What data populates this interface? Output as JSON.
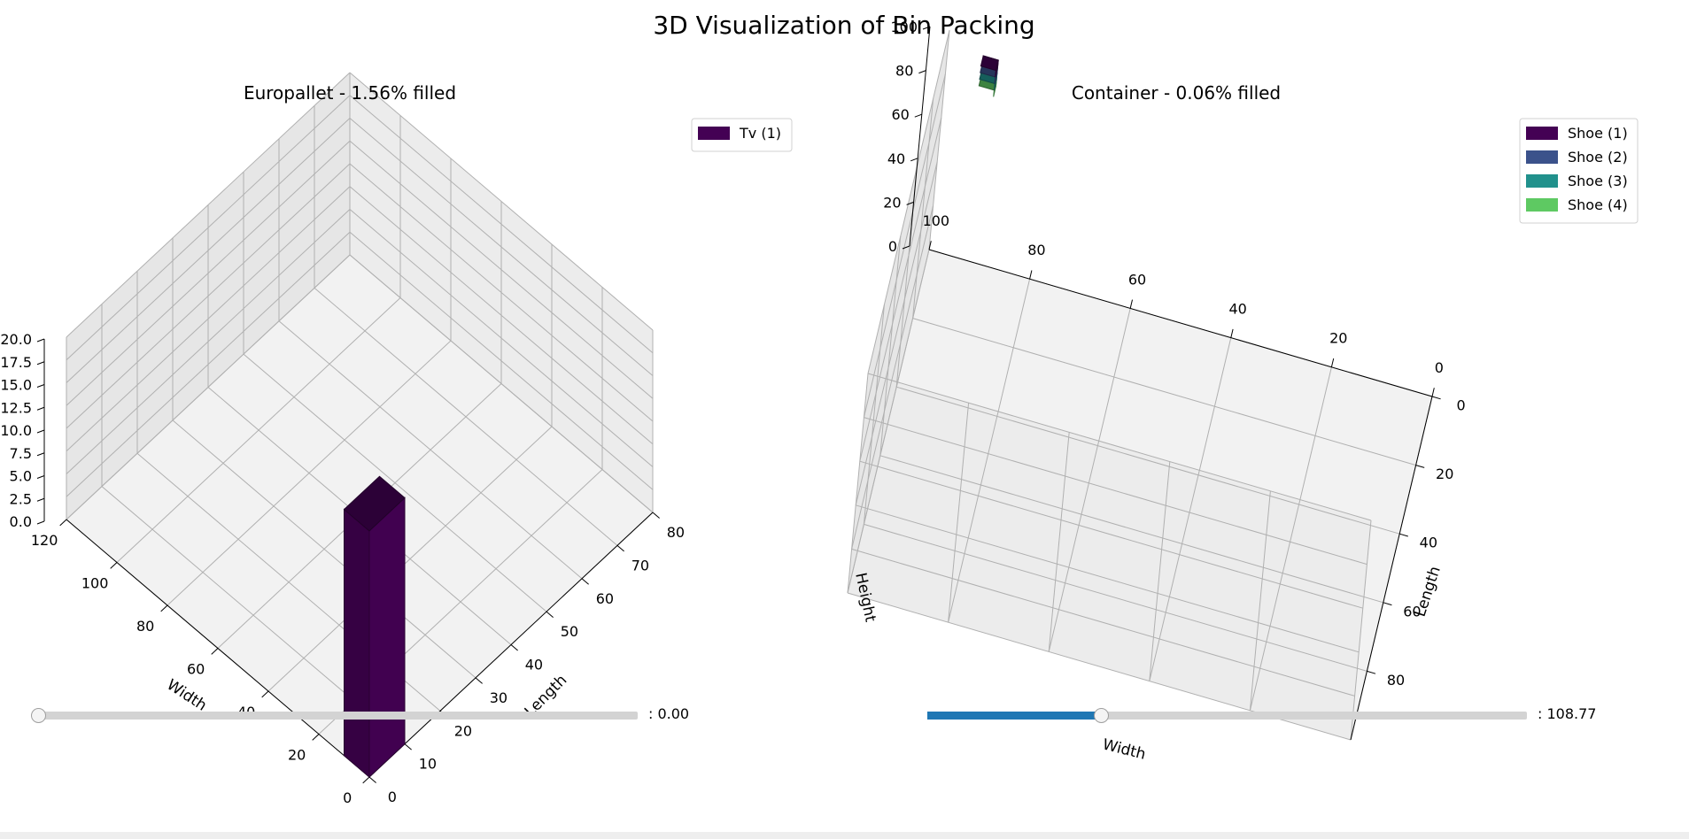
{
  "figure": {
    "title": "3D Visualization of Bin Packing"
  },
  "colors": {
    "pane": "#f2f2f2",
    "grid": "#b0b0b0",
    "tv": "#440154",
    "shoe1": "#440154",
    "shoe2": "#3b528b",
    "shoe3": "#21918c",
    "shoe4": "#5ec962",
    "slider_fill": "#1f77b4",
    "slider_track": "#d3d3d3"
  },
  "chart_data": [
    {
      "type": "bar3d",
      "title": "Europallet - 1.56% filled",
      "xlabel": "Length",
      "ylabel": "Width",
      "zlabel": "",
      "x_ticks": [
        "0",
        "10",
        "20",
        "30",
        "40",
        "50",
        "60",
        "70",
        "80"
      ],
      "y_ticks": [
        "0",
        "20",
        "40",
        "60",
        "80",
        "100",
        "120"
      ],
      "z_ticks": [
        "0.0",
        "2.5",
        "5.0",
        "7.5",
        "10.0",
        "12.5",
        "15.0",
        "17.5",
        "20.0"
      ],
      "xlim": [
        0,
        80
      ],
      "ylim": [
        0,
        120
      ],
      "zlim": [
        0,
        20
      ],
      "legend": [
        {
          "label": "Tv (1)",
          "color": "#440154"
        }
      ],
      "legend_position": "top-right",
      "boxes": [
        {
          "name": "Tv (1)",
          "x": [
            0,
            10
          ],
          "y": [
            0,
            10
          ],
          "z": [
            0,
            27
          ],
          "color": "#440154"
        }
      ],
      "slider": {
        "value_text": ": 0.00",
        "fraction": 0.0
      }
    },
    {
      "type": "bar3d",
      "title": "Container - 0.06% filled",
      "xlabel": "Length",
      "ylabel": "Width",
      "zlabel": "Height",
      "x_ticks": [
        "0",
        "20",
        "40",
        "60",
        "80"
      ],
      "y_ticks": [
        "0",
        "20",
        "40",
        "60",
        "80",
        "100"
      ],
      "z_ticks": [
        "0",
        "20",
        "40",
        "60",
        "80",
        "100"
      ],
      "xlim": [
        0,
        100
      ],
      "ylim": [
        0,
        100
      ],
      "zlim": [
        0,
        100
      ],
      "legend": [
        {
          "label": "Shoe (1)",
          "color": "#440154"
        },
        {
          "label": "Shoe (2)",
          "color": "#3b528b"
        },
        {
          "label": "Shoe (3)",
          "color": "#21918c"
        },
        {
          "label": "Shoe (4)",
          "color": "#5ec962"
        }
      ],
      "legend_position": "top-right",
      "boxes": [
        {
          "name": "Shoe (1)",
          "x": [
            0,
            3
          ],
          "y": [
            90,
            93
          ],
          "z": [
            90,
            93
          ],
          "color": "#440154"
        },
        {
          "name": "Shoe (2)",
          "x": [
            0,
            3
          ],
          "y": [
            90,
            93
          ],
          "z": [
            87,
            90
          ],
          "color": "#3b528b"
        },
        {
          "name": "Shoe (3)",
          "x": [
            0,
            3
          ],
          "y": [
            90,
            93
          ],
          "z": [
            84,
            87
          ],
          "color": "#21918c"
        },
        {
          "name": "Shoe (4)",
          "x": [
            0,
            3
          ],
          "y": [
            90,
            93
          ],
          "z": [
            81,
            84
          ],
          "color": "#5ec962"
        }
      ],
      "slider": {
        "value_text": ": 108.77",
        "fraction": 0.29
      }
    }
  ]
}
